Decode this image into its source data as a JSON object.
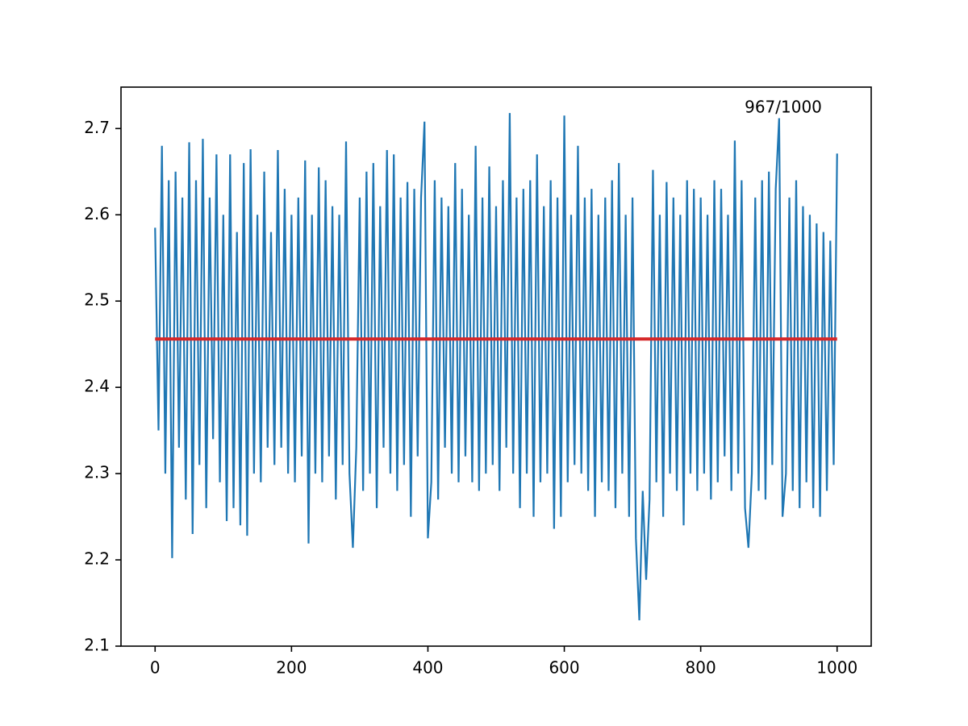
{
  "chart_data": {
    "type": "line",
    "annotation": "967/1000",
    "x": [
      0,
      5,
      10,
      15,
      20,
      25,
      30,
      35,
      40,
      45,
      50,
      55,
      60,
      65,
      70,
      75,
      80,
      85,
      90,
      95,
      100,
      105,
      110,
      115,
      120,
      125,
      130,
      135,
      140,
      145,
      150,
      155,
      160,
      165,
      170,
      175,
      180,
      185,
      190,
      195,
      200,
      205,
      210,
      215,
      220,
      225,
      230,
      235,
      240,
      245,
      250,
      255,
      260,
      265,
      270,
      275,
      280,
      285,
      290,
      295,
      300,
      305,
      310,
      315,
      320,
      325,
      330,
      335,
      340,
      345,
      350,
      355,
      360,
      365,
      370,
      375,
      380,
      385,
      390,
      395,
      400,
      405,
      410,
      415,
      420,
      425,
      430,
      435,
      440,
      445,
      450,
      455,
      460,
      465,
      470,
      475,
      480,
      485,
      490,
      495,
      500,
      505,
      510,
      515,
      520,
      525,
      530,
      535,
      540,
      545,
      550,
      555,
      560,
      565,
      570,
      575,
      580,
      585,
      590,
      595,
      600,
      605,
      610,
      615,
      620,
      625,
      630,
      635,
      640,
      645,
      650,
      655,
      660,
      665,
      670,
      675,
      680,
      685,
      690,
      695,
      700,
      705,
      710,
      715,
      720,
      725,
      730,
      735,
      740,
      745,
      750,
      755,
      760,
      765,
      770,
      775,
      780,
      785,
      790,
      795,
      800,
      805,
      810,
      815,
      820,
      825,
      830,
      835,
      840,
      845,
      850,
      855,
      860,
      865,
      870,
      875,
      880,
      885,
      890,
      895,
      900,
      905,
      910,
      915,
      920,
      925,
      930,
      935,
      940,
      945,
      950,
      955,
      960,
      965,
      970,
      975,
      980,
      985,
      990,
      995,
      1000
    ],
    "series": [
      {
        "color": "#1f77b4",
        "values": [
          2.585,
          2.35,
          2.68,
          2.3,
          2.64,
          2.202,
          2.65,
          2.33,
          2.62,
          2.27,
          2.684,
          2.23,
          2.64,
          2.31,
          2.688,
          2.26,
          2.62,
          2.34,
          2.67,
          2.29,
          2.6,
          2.245,
          2.67,
          2.26,
          2.58,
          2.24,
          2.66,
          2.228,
          2.676,
          2.3,
          2.6,
          2.29,
          2.65,
          2.33,
          2.58,
          2.31,
          2.675,
          2.33,
          2.63,
          2.3,
          2.6,
          2.29,
          2.62,
          2.32,
          2.663,
          2.219,
          2.6,
          2.3,
          2.655,
          2.29,
          2.64,
          2.32,
          2.61,
          2.27,
          2.6,
          2.31,
          2.685,
          2.3,
          2.214,
          2.33,
          2.62,
          2.28,
          2.65,
          2.3,
          2.66,
          2.26,
          2.61,
          2.33,
          2.675,
          2.3,
          2.67,
          2.28,
          2.62,
          2.31,
          2.638,
          2.25,
          2.63,
          2.32,
          2.62,
          2.708,
          2.225,
          2.29,
          2.64,
          2.27,
          2.62,
          2.33,
          2.61,
          2.3,
          2.66,
          2.29,
          2.63,
          2.32,
          2.6,
          2.29,
          2.68,
          2.28,
          2.62,
          2.3,
          2.656,
          2.31,
          2.61,
          2.28,
          2.64,
          2.33,
          2.718,
          2.3,
          2.62,
          2.26,
          2.63,
          2.3,
          2.64,
          2.25,
          2.67,
          2.29,
          2.61,
          2.3,
          2.64,
          2.236,
          2.62,
          2.25,
          2.715,
          2.29,
          2.6,
          2.31,
          2.68,
          2.3,
          2.62,
          2.28,
          2.63,
          2.25,
          2.6,
          2.29,
          2.62,
          2.28,
          2.64,
          2.26,
          2.66,
          2.3,
          2.6,
          2.25,
          2.62,
          2.225,
          2.13,
          2.28,
          2.177,
          2.27,
          2.652,
          2.29,
          2.6,
          2.25,
          2.638,
          2.3,
          2.62,
          2.28,
          2.6,
          2.24,
          2.64,
          2.3,
          2.63,
          2.28,
          2.62,
          2.3,
          2.6,
          2.27,
          2.64,
          2.29,
          2.63,
          2.32,
          2.6,
          2.28,
          2.686,
          2.3,
          2.64,
          2.26,
          2.214,
          2.3,
          2.62,
          2.28,
          2.64,
          2.27,
          2.65,
          2.31,
          2.63,
          2.712,
          2.25,
          2.3,
          2.62,
          2.28,
          2.64,
          2.26,
          2.61,
          2.29,
          2.6,
          2.26,
          2.59,
          2.25,
          2.58,
          2.28,
          2.57,
          2.31,
          2.671
        ]
      },
      {
        "color": "#d62728",
        "x": [
          0,
          1000
        ],
        "values": [
          2.456,
          2.456
        ]
      }
    ],
    "xlim": [
      -50,
      1050
    ],
    "xticks": [
      0,
      200,
      400,
      600,
      800,
      1000
    ],
    "ylim": [
      2.1,
      2.748
    ],
    "yticks": [
      2.1,
      2.2,
      2.3,
      2.4,
      2.5,
      2.6,
      2.7
    ]
  }
}
